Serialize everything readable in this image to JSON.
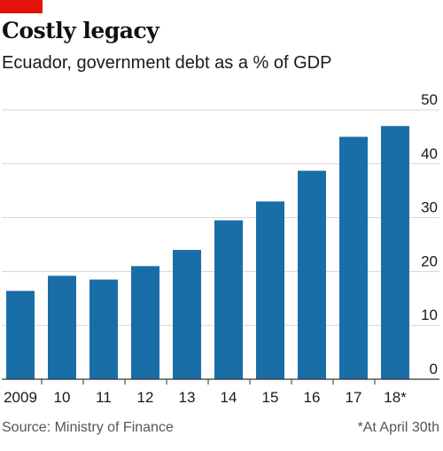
{
  "header": {
    "title": "Costly legacy",
    "subtitle": "Ecuador, government debt as a % of GDP"
  },
  "footer": {
    "source": "Source: Ministry of Finance",
    "note": "*At April 30th"
  },
  "colors": {
    "accent": "#e3120b",
    "bar": "#1a6ea8",
    "grid": "#d5d5d5",
    "axis": "#333333",
    "text": "#1a1a1a"
  },
  "chart_data": {
    "type": "bar",
    "categories": [
      "2009",
      "10",
      "11",
      "12",
      "13",
      "14",
      "15",
      "16",
      "17",
      "18*"
    ],
    "values": [
      16.4,
      19.2,
      18.5,
      21.0,
      24.0,
      29.5,
      33.0,
      38.7,
      45.0,
      47.0
    ],
    "ylim": [
      0,
      50
    ],
    "yticks": [
      0,
      10,
      20,
      30,
      40,
      50
    ],
    "ytick_side": "right",
    "grid": true,
    "xlabel": "",
    "ylabel": ""
  }
}
